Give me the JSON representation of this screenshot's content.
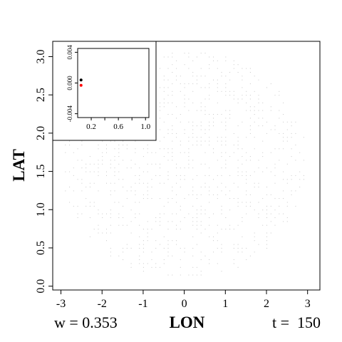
{
  "footer": {
    "w_label": "w = 0.353",
    "t_label": "t =  150"
  },
  "chart_data": [
    {
      "type": "scatter",
      "xlabel": "LON",
      "ylabel": "LAT",
      "xlim": [
        -3.2,
        3.3
      ],
      "ylim": [
        -0.05,
        3.2
      ],
      "xticks": [
        -3,
        -2,
        -1,
        0,
        1,
        2,
        3
      ],
      "yticks": [
        0.0,
        0.5,
        1.0,
        1.5,
        2.0,
        2.5,
        3.0
      ],
      "xtick_labels": [
        "-3",
        "-2",
        "-1",
        "0",
        "1",
        "2",
        "3"
      ],
      "ytick_labels": [
        "0.0",
        "0.5",
        "1.0",
        "1.5",
        "2.0",
        "2.5",
        "3.0"
      ],
      "point_color": "#c8c8c8",
      "cloud": {
        "center": [
          0.0,
          1.6
        ],
        "half_width": 3.0,
        "half_height": 1.5,
        "grid_step": 0.1,
        "density": 0.35
      }
    },
    {
      "type": "scatter",
      "xlim": [
        0.0,
        1.05
      ],
      "ylim": [
        -0.0045,
        0.0045
      ],
      "xticks": [
        0.2,
        0.4,
        0.6,
        0.8,
        1.0
      ],
      "xtick_labels": [
        "0.2",
        "",
        "0.6",
        "",
        "1.0"
      ],
      "yticks": [
        -0.004,
        0.0,
        0.004
      ],
      "ytick_labels": [
        "-0.004",
        "0.000",
        "0.004"
      ],
      "series": [
        {
          "x": [
            0.05
          ],
          "y": [
            0.0004
          ],
          "color": "#000000"
        },
        {
          "x": [
            0.05
          ],
          "y": [
            -0.0003
          ],
          "color": "#ff0000"
        }
      ]
    }
  ]
}
